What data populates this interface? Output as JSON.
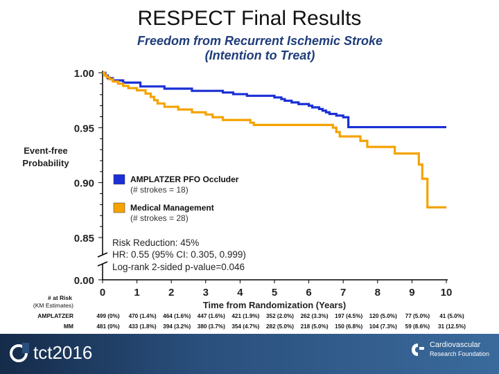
{
  "slide": {
    "title": "RESPECT Final Results",
    "subtitle_line1": "Freedom from Recurrent Ischemic Stroke",
    "subtitle_line2": "(Intention to Treat)",
    "footer_left_logo": "tct2016",
    "footer_right_logo_line1": "Cardiovascular",
    "footer_right_logo_line2": "Research Foundation"
  },
  "colors": {
    "amplatzer": "#1a2fd6",
    "medical": "#f5a300",
    "axis": "#000000",
    "subtitle": "#1f3d7a"
  },
  "chart_data": {
    "type": "line",
    "xlabel": "Time from Randomization (Years)",
    "ylabel_line1": "Event-free",
    "ylabel_line2": "Probability",
    "xlim": [
      0,
      10
    ],
    "ylim": [
      0.85,
      1.0
    ],
    "y_axis_break": true,
    "x_ticks": [
      "0",
      "1",
      "2",
      "3",
      "4",
      "5",
      "6",
      "7",
      "8",
      "9",
      "10"
    ],
    "y_ticks": [
      "1.00",
      "0.95",
      "0.90",
      "0.85",
      "0.00"
    ],
    "legend": [
      {
        "label": "AMPLATZER PFO Occluder",
        "note": "(# strokes = 18)"
      },
      {
        "label": "Medical Management",
        "note": "(# strokes = 28)"
      }
    ],
    "stats": [
      "Risk Reduction: 45%",
      "HR: 0.55 (95% CI: 0.305, 0.999)",
      "Log-rank 2-sided p-value=0.046"
    ],
    "series": [
      {
        "name": "AMPLATZER PFO Occluder",
        "x": [
          0,
          0.08,
          0.15,
          0.3,
          0.6,
          1.1,
          1.8,
          2.6,
          3.5,
          3.8,
          4.2,
          5.0,
          5.2,
          5.3,
          5.5,
          5.7,
          6.0,
          6.1,
          6.3,
          6.4,
          6.5,
          6.6,
          6.8,
          7.0,
          7.15,
          10
        ],
        "y": [
          1.0,
          0.9975,
          0.995,
          0.993,
          0.991,
          0.9875,
          0.9855,
          0.9835,
          0.982,
          0.9805,
          0.979,
          0.9775,
          0.976,
          0.9745,
          0.973,
          0.9715,
          0.97,
          0.9685,
          0.967,
          0.9655,
          0.964,
          0.9625,
          0.961,
          0.9595,
          0.9505,
          0.9505
        ]
      },
      {
        "name": "Medical Management",
        "x": [
          0,
          0.06,
          0.12,
          0.2,
          0.3,
          0.45,
          0.6,
          0.75,
          1.0,
          1.25,
          1.4,
          1.5,
          1.6,
          1.8,
          2.2,
          2.6,
          3.0,
          3.2,
          3.5,
          4.3,
          4.4,
          6.7,
          6.8,
          6.9,
          7.5,
          7.7,
          8.5,
          9.2,
          9.3,
          9.45,
          10
        ],
        "y": [
          1.0,
          0.9975,
          0.996,
          0.994,
          0.992,
          0.99,
          0.988,
          0.986,
          0.984,
          0.981,
          0.978,
          0.975,
          0.972,
          0.969,
          0.9665,
          0.964,
          0.962,
          0.9595,
          0.957,
          0.9545,
          0.9525,
          0.95,
          0.946,
          0.942,
          0.938,
          0.9325,
          0.9265,
          0.9165,
          0.9035,
          0.8775,
          0.8775
        ]
      }
    ]
  },
  "at_risk": {
    "header_line1": "# at Risk",
    "header_line2": "(KM Estimates)",
    "rows": [
      {
        "label": "AMPLATZER",
        "values": [
          "499 (0%)",
          "470 (1.4%)",
          "464 (1.6%)",
          "447 (1.6%)",
          "421 (1.9%)",
          "352 (2.0%)",
          "262 (3.3%)",
          "197 (4.5%)",
          "120 (5.0%)",
          "77 (5.0%)",
          "41 (5.0%)"
        ]
      },
      {
        "label": "MM",
        "values": [
          "481 (0%)",
          "433 (1.8%)",
          "394 (3.2%)",
          "380 (3.7%)",
          "354 (4.7%)",
          "282 (5.0%)",
          "218 (5.0%)",
          "150 (6.8%)",
          "104 (7.3%)",
          "59 (8.6%)",
          "31 (12.5%)"
        ]
      }
    ]
  }
}
